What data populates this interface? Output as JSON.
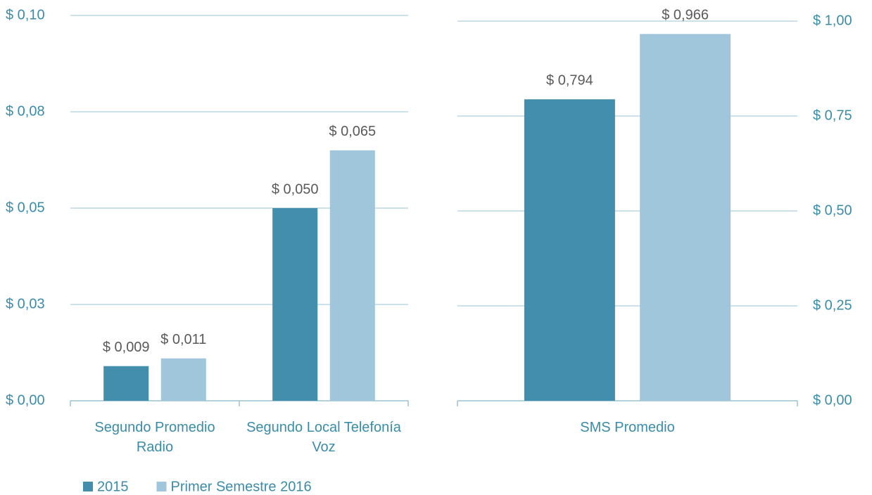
{
  "chart_data": [
    {
      "type": "bar",
      "categories": [
        "Segundo Promedio Radio",
        "Segundo Local Telefonía Voz"
      ],
      "series": [
        {
          "name": "2015",
          "color": "#428eac",
          "values": [
            0.009,
            0.05
          ],
          "value_labels": [
            "$ 0,009",
            "$ 0,050"
          ]
        },
        {
          "name": "Primer Semestre 2016",
          "color": "#a0c6dc",
          "values": [
            0.011,
            0.065
          ],
          "value_labels": [
            "$ 0,011",
            "$ 0,065"
          ]
        }
      ],
      "ylim": [
        0,
        0.1
      ],
      "yticks": [
        {
          "value": 0,
          "label": "$ 0,00"
        },
        {
          "value": 0.025,
          "label": "$ 0,03"
        },
        {
          "value": 0.05,
          "label": "$ 0,05"
        },
        {
          "value": 0.075,
          "label": "$ 0,08"
        },
        {
          "value": 0.1,
          "label": "$ 0,10"
        }
      ],
      "grid": true
    },
    {
      "type": "bar",
      "categories": [
        "SMS Promedio"
      ],
      "series": [
        {
          "color": "#428eac",
          "values": [
            0.794
          ],
          "value_labels": [
            "$ 0,794"
          ]
        },
        {
          "color": "#a0c6dc",
          "values": [
            0.966
          ],
          "value_labels": [
            "$ 0,966"
          ]
        }
      ],
      "ylim": [
        0,
        1
      ],
      "yticks": [
        {
          "value": 0,
          "label": "$ 0,00"
        },
        {
          "value": 0.25,
          "label": "$ 0,25"
        },
        {
          "value": 0.5,
          "label": "$ 0,50"
        },
        {
          "value": 0.75,
          "label": "$ 0,75"
        },
        {
          "value": 1,
          "label": "$ 1,00"
        }
      ],
      "grid": true
    }
  ]
}
